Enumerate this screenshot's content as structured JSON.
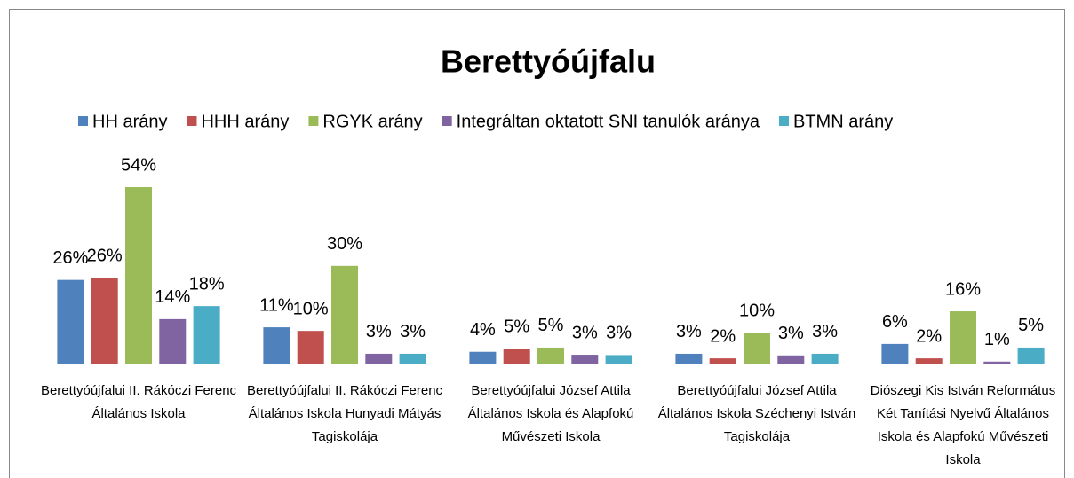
{
  "chart_data": {
    "type": "bar",
    "title": "Berettyóújfalu",
    "categories": [
      "Berettyóújfalui II. Rákóczi Ferenc Általános Iskola",
      "Berettyóújfalui II. Rákóczi Ferenc Általános Iskola Hunyadi Mátyás Tagiskolája",
      "Berettyóújfalui József Attila Általános Iskola és Alapfokú Művészeti Iskola",
      "Berettyóújfalui József Attila Általános Iskola Széchenyi István Tagiskolája",
      "Diószegi Kis István Református Két Tanítási Nyelvű Általános Iskola és Alapfokú Művészeti Iskola"
    ],
    "series": [
      {
        "name": "HH arány",
        "color": "#4f81bd",
        "values": [
          25.6,
          11.1,
          3.6,
          3.0,
          6.0
        ],
        "value_labels": [
          "26%",
          "11%",
          "4%",
          "3%",
          "6%"
        ]
      },
      {
        "name": "HHH arány",
        "color": "#c0504d",
        "values": [
          26.3,
          10.0,
          4.6,
          1.6,
          1.6
        ],
        "value_labels": [
          "26%",
          "10%",
          "5%",
          "2%",
          "2%"
        ]
      },
      {
        "name": "RGYK arány",
        "color": "#9bbb59",
        "values": [
          54.0,
          29.9,
          4.9,
          9.5,
          16.0
        ],
        "value_labels": [
          "54%",
          "30%",
          "5%",
          "10%",
          "16%"
        ]
      },
      {
        "name": "Integráltan oktatott SNI tanulók aránya",
        "color": "#8064a2",
        "values": [
          13.6,
          3.0,
          2.7,
          2.5,
          0.6
        ],
        "value_labels": [
          "14%",
          "3%",
          "3%",
          "3%",
          "1%"
        ]
      },
      {
        "name": "BTMN arány",
        "color": "#4bacc6",
        "values": [
          17.6,
          3.0,
          2.6,
          3.0,
          4.9
        ],
        "value_labels": [
          "18%",
          "3%",
          "3%",
          "3%",
          "5%"
        ]
      }
    ],
    "legend": "top"
  }
}
